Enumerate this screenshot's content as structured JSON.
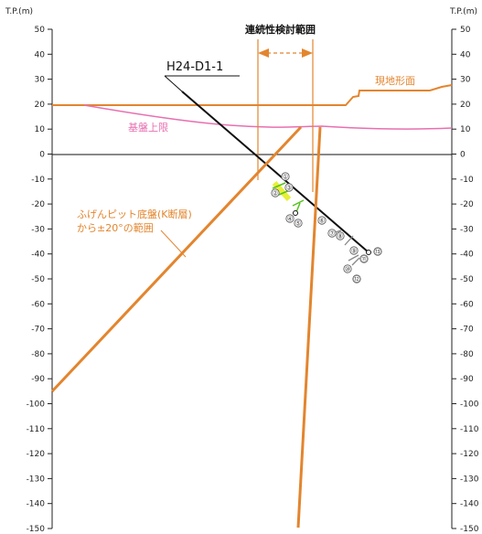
{
  "axis": {
    "unit_left": "T.P.(m)",
    "unit_right": "T.P.(m)",
    "ticks": [
      "50",
      "40",
      "30",
      "20",
      "10",
      "0",
      "-10",
      "-20",
      "-30",
      "-40",
      "-50",
      "-60",
      "-70",
      "-80",
      "-90",
      "-100",
      "-110",
      "-120",
      "-130",
      "-140",
      "-150"
    ]
  },
  "labels": {
    "range_title": "連続性検討範囲",
    "borehole": "H24-D1-1",
    "ground_surface": "現地形面",
    "bedrock_top": "基盤上限",
    "fault_range_line1": "ふげんピット底盤(K断層)",
    "fault_range_line2": "から±20°の範囲"
  },
  "markers": [
    "①",
    "②",
    "③",
    "④",
    "⑤",
    "⑥",
    "⑦",
    "⑧",
    "⑨",
    "⑩",
    "⑪",
    "⑫",
    "⑬"
  ],
  "colors": {
    "orange": "#e3852e",
    "pink": "#e86fb0",
    "green": "#55c21b",
    "yellow": "#e8ef38",
    "black": "#111111"
  }
}
